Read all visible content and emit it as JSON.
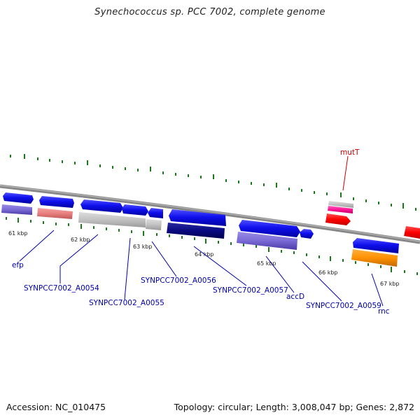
{
  "title": "Synechococcus sp. PCC 7002, complete genome",
  "footer": {
    "accession": "Accession: NC_010475",
    "stats": "Topology: circular; Length: 3,008,047 bp; Genes: 2,872"
  },
  "colors": {
    "backbone": "#888888",
    "tick": "#1a7a1a",
    "label_blue": "#0000aa",
    "label_red": "#cc0000"
  },
  "kbp_labels": [
    "61 kbp",
    "62 kbp",
    "63 kbp",
    "64 kbp",
    "65 kbp",
    "66 kbp",
    "67 kbp"
  ],
  "genes": [
    "efp",
    "SYNPCC7002_A0054",
    "SYNPCC7002_A0055",
    "SYNPCC7002_A0056",
    "SYNPCC7002_A0057",
    "accD",
    "SYNPCC7002_A0059",
    "rnc",
    "mutT"
  ]
}
